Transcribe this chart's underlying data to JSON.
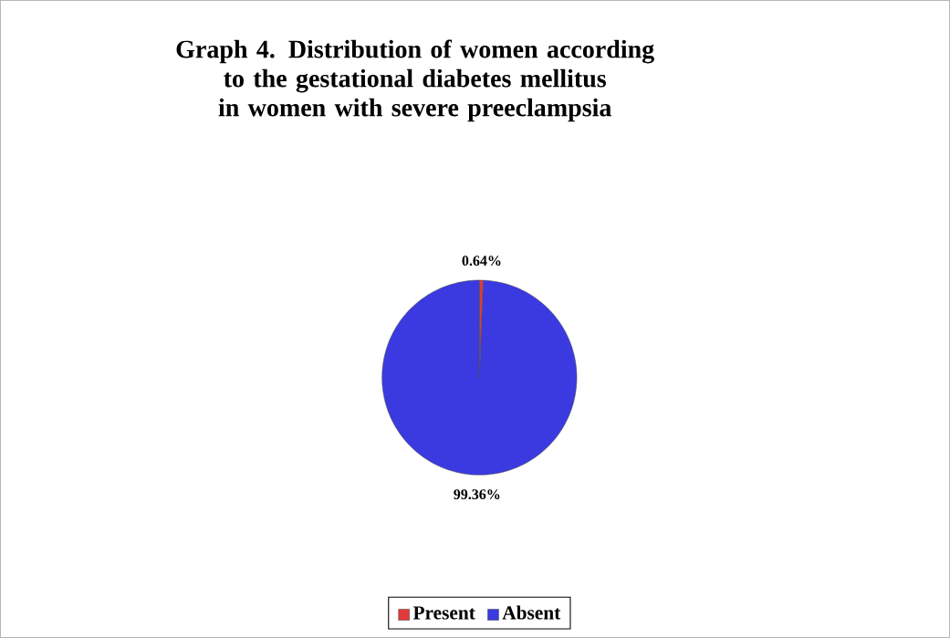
{
  "chart_data": {
    "type": "pie",
    "title": "Graph 4. Distribution of women according to the gestational diabetes mellitus in women with severe preeclampsia",
    "categories": [
      "Present",
      "Absent"
    ],
    "values": [
      0.64,
      99.36
    ],
    "colors": [
      "#e03a3a",
      "#3a3ae0"
    ],
    "value_labels": [
      "0.64%",
      "99.36%"
    ],
    "legend": "bottom"
  }
}
